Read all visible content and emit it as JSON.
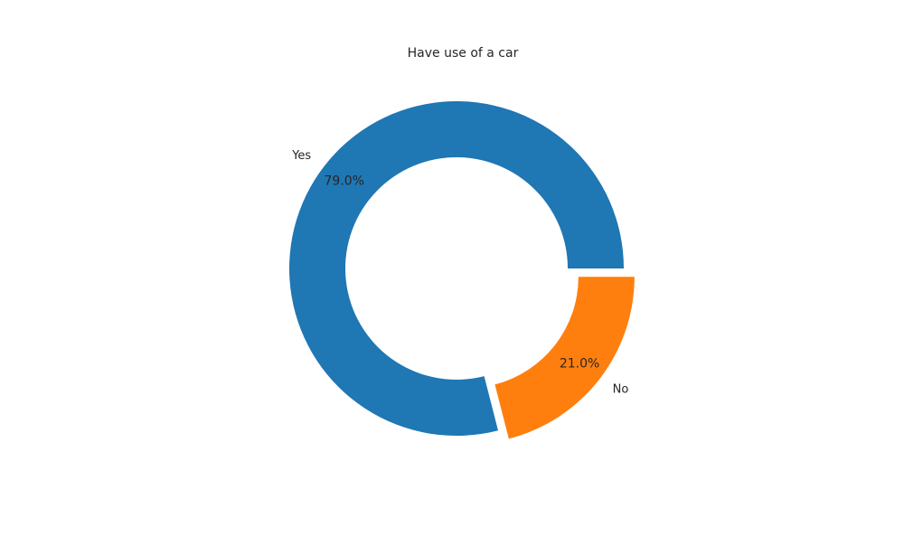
{
  "chart_data": {
    "type": "pie",
    "style": "donut",
    "title": "Have use of a car",
    "categories": [
      "Yes",
      "No"
    ],
    "values": [
      79.0,
      21.0
    ],
    "value_labels": [
      "79.0%",
      "21.0%"
    ],
    "colors": [
      "#1f77b4",
      "#ff7f0e"
    ],
    "exploded": [
      "No"
    ],
    "legend": "none"
  }
}
